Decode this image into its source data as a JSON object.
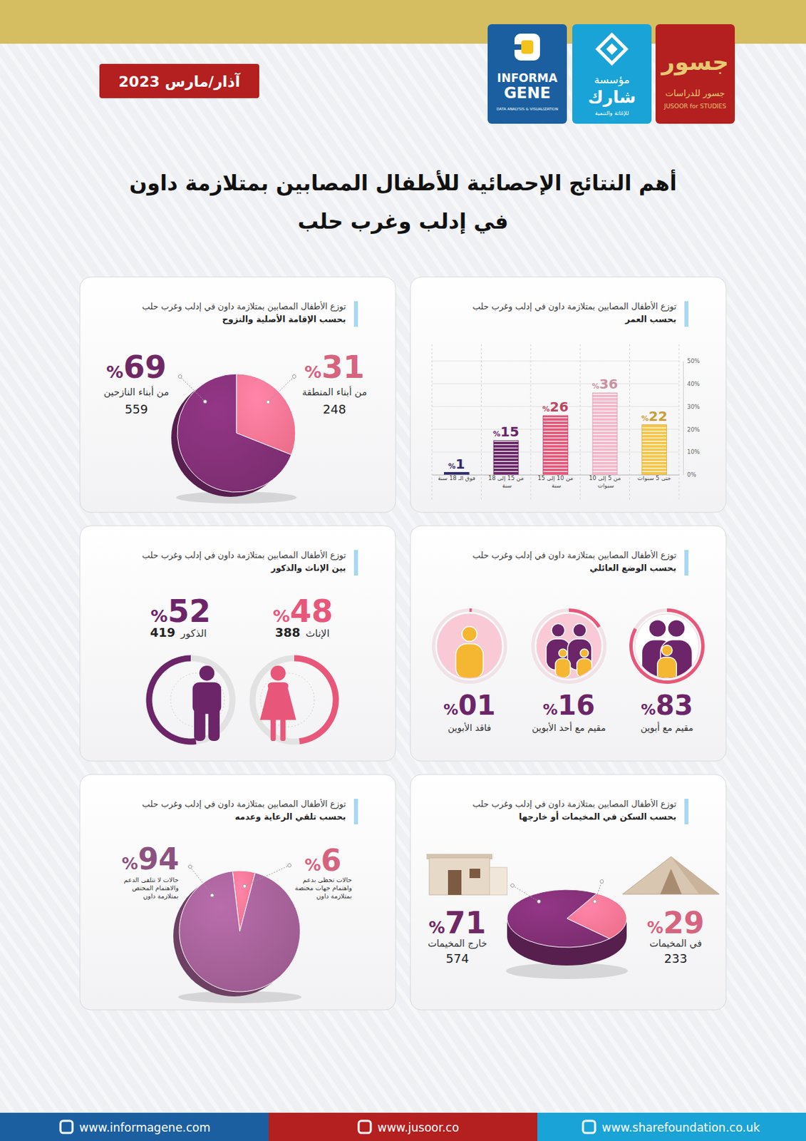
{
  "header": {
    "logos": [
      {
        "lines": [
          "INFORMA",
          "GENE",
          "DATA ANALYSIS & VISUALIZATION"
        ]
      },
      {
        "lines": [
          "مؤسسة",
          "شارك",
          "للإغاثة والتنمية"
        ]
      },
      {
        "lines": [
          "جسور",
          "جسور للدراسات",
          "JUSOOR for STUDIES"
        ]
      }
    ],
    "date": "آذار/مارس 2023",
    "title_lines": [
      "أهم النتائج الإحصائية للأطفال المصابين بمتلازمة داون",
      "في إدلب وغرب حلب"
    ]
  },
  "chart_data": [
    {
      "type": "bar",
      "title": "توزع الأطفال المصابين بمتلازمة داون في إدلب وغرب حلب",
      "subtitle": "بحسب العمر",
      "categories": [
        "حتى 5 سنوات",
        "من 5 إلى 10 سنوات",
        "من 10 إلى 15 سنة",
        "من 15 إلى 18 سنة",
        "فوق الـ 18 سنة"
      ],
      "values": [
        22,
        36,
        26,
        15,
        1
      ],
      "value_labels": [
        "%22",
        "%36",
        "%26",
        "%15",
        "%1"
      ],
      "colors": [
        "#f7c548",
        "#f7b6ca",
        "#e8577a",
        "#6b2568",
        "#2e2a6b"
      ],
      "ylim": [
        0,
        50
      ],
      "yticks": [
        {
          "value": 0,
          "label": "0%"
        },
        {
          "value": 10,
          "label": "10%"
        },
        {
          "value": 20,
          "label": "20%"
        },
        {
          "value": 30,
          "label": "30%"
        },
        {
          "value": 40,
          "label": "40%"
        },
        {
          "value": 50,
          "label": "50%"
        }
      ],
      "grid": true,
      "data_labels": true
    },
    {
      "type": "pie",
      "title": "توزع الأطفال المصابين بمتلازمة داون في إدلب وغرب حلب",
      "subtitle": "بحسب الإقامة الأصلية والنزوح",
      "categories": [
        "من أبناء المنطقة",
        "من أبناء النازحين"
      ],
      "values": [
        31,
        69
      ],
      "value_labels": [
        "%31",
        "%69"
      ],
      "counts": [
        248,
        559
      ],
      "colors": [
        "#ee6f8d",
        "#7b2d70"
      ],
      "data_labels": true
    },
    {
      "type": "ring",
      "title": "توزع الأطفال المصابين بمتلازمة داون في إدلب وغرب حلب",
      "subtitle": "بحسب الوضع العائلي",
      "categories": [
        "مقيم مع أبوين",
        "مقيم مع أحد الأبوين",
        "فاقد الأبوين"
      ],
      "values": [
        83,
        16,
        1
      ],
      "value_labels": [
        "%83",
        "%16",
        "%01"
      ],
      "color": "#e8577a",
      "data_labels": true
    },
    {
      "type": "ring",
      "title": "توزع الأطفال المصابين بمتلازمة داون في إدلب وغرب حلب",
      "subtitle": "بين الإناث والذكور",
      "categories": [
        "الإناث",
        "الذكور"
      ],
      "values": [
        48,
        52
      ],
      "value_labels": [
        "%48",
        "%52"
      ],
      "counts": [
        388,
        419
      ],
      "colors": [
        "#e8577a",
        "#6b2568"
      ],
      "data_labels": true
    },
    {
      "type": "pie",
      "title": "توزع الأطفال المصابين بمتلازمة داون في إدلب وغرب حلب",
      "subtitle": "بحسب السكن في المخيمات أو خارجها",
      "categories": [
        "في المخيمات",
        "خارج المخيمات"
      ],
      "values": [
        29,
        71
      ],
      "value_labels": [
        "%29",
        "%71"
      ],
      "counts": [
        233,
        574
      ],
      "colors": [
        "#ee6f8d",
        "#7b2d70"
      ],
      "data_labels": true
    },
    {
      "type": "pie",
      "title": "توزع الأطفال المصابين بمتلازمة داون في إدلب وغرب حلب",
      "subtitle": "بحسب تلقي الرعاية وعدمه",
      "categories": [
        "حالات تحظى بدعم واهتمام جهات مختصة بمتلازمة داون",
        "حالات لا تتلقى الدعم والاهتمام المختص بمتلازمة داون"
      ],
      "values": [
        6,
        94
      ],
      "value_labels": [
        "%6",
        "%94"
      ],
      "colors": [
        "#ee6f8d",
        "#9b5b8f"
      ],
      "data_labels": true
    }
  ],
  "footer": {
    "links": [
      "www.informagene.com",
      "www.jusoor.co",
      "www.sharefoundation.co.uk"
    ]
  }
}
